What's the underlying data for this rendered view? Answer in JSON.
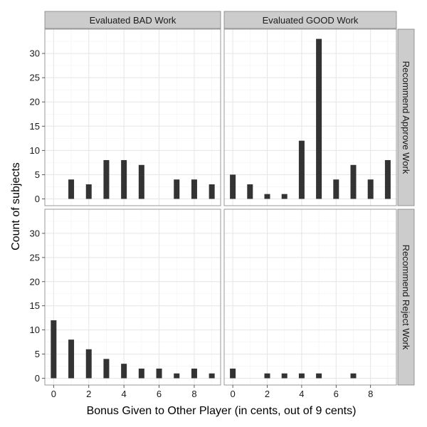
{
  "chart_data": {
    "type": "bar",
    "xlabel": "Bonus Given to Other Player (in cents, out of 9 cents)",
    "ylabel": "Count of subjects",
    "xlim": [
      -0.5,
      9.5
    ],
    "ylim": [
      -1.4,
      35
    ],
    "x_ticks": [
      0,
      2,
      4,
      6,
      8
    ],
    "y_ticks": [
      0,
      5,
      10,
      15,
      20,
      25,
      30
    ],
    "grid": true,
    "facet_columns": [
      "Evaluated BAD Work",
      "Evaluated GOOD Work"
    ],
    "facet_rows": [
      "Recommend Approve Work",
      "Recommend Reject Work"
    ],
    "panels": [
      {
        "column": "Evaluated BAD Work",
        "row": "Recommend Approve Work",
        "x": [
          1,
          2,
          3,
          4,
          5,
          7,
          8,
          9
        ],
        "values": [
          4,
          3,
          8,
          8,
          7,
          4,
          4,
          3
        ]
      },
      {
        "column": "Evaluated GOOD Work",
        "row": "Recommend Approve Work",
        "x": [
          0,
          1,
          2,
          3,
          4,
          5,
          6,
          7,
          8,
          9
        ],
        "values": [
          5,
          3,
          1,
          1,
          12,
          33,
          4,
          7,
          4,
          8
        ]
      },
      {
        "column": "Evaluated BAD Work",
        "row": "Recommend Reject Work",
        "x": [
          0,
          1,
          2,
          3,
          4,
          5,
          6,
          7,
          8,
          9
        ],
        "values": [
          12,
          8,
          6,
          4,
          3,
          2,
          2,
          1,
          2,
          1
        ]
      },
      {
        "column": "Evaluated GOOD Work",
        "row": "Recommend Reject Work",
        "x": [
          0,
          2,
          3,
          4,
          5,
          7
        ],
        "values": [
          2,
          1,
          1,
          1,
          1,
          1
        ]
      }
    ],
    "colors": {
      "bar": "#333333",
      "strip_fill": "#cccccc",
      "strip_border": "#808080",
      "grid_major": "#e5e5e5",
      "grid_minor": "#f2f2f2",
      "panel_border": "#7f7f7f"
    }
  }
}
